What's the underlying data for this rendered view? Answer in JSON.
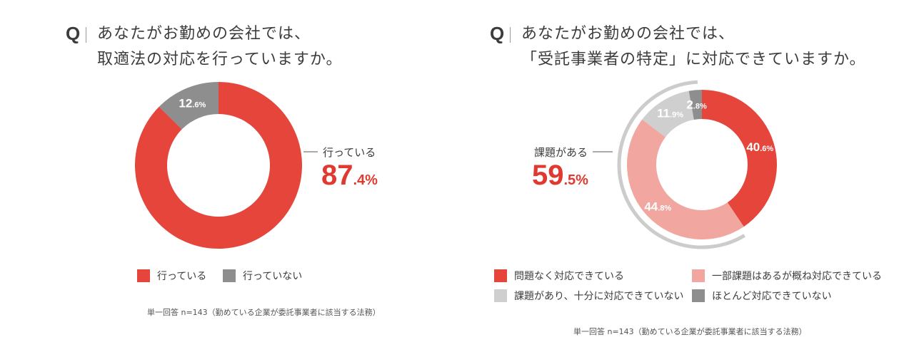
{
  "colors": {
    "red": "#e5453a",
    "pink": "#f2a6a0",
    "light_gray": "#cfcfcf",
    "dark_gray": "#8e8e8e",
    "accent_text": "#e03a30"
  },
  "left": {
    "q_mark": "Q",
    "question_line1": "あなたがお勤めの会社では、",
    "question_line2": "取適法の対応を行っていますか。",
    "callout_label": "行っている",
    "callout_int": "87",
    "callout_dec": ".4%",
    "legend": [
      {
        "label": "行っている",
        "color": "#e5453a"
      },
      {
        "label": "行っていない",
        "color": "#8e8e8e"
      }
    ],
    "note": "単一回答 n=143（勤めている企業が委託事業者に該当する法務）"
  },
  "right": {
    "q_mark": "Q",
    "question_line1": "あなたがお勤めの会社では、",
    "question_line2": "「受託事業者の特定」に対応できていますか。",
    "callout_label": "課題がある",
    "callout_int": "59",
    "callout_dec": ".5%",
    "legend": [
      {
        "label": "問題なく対応できている",
        "color": "#e5453a"
      },
      {
        "label": "一部課題はあるが概ね対応できている",
        "color": "#f2a6a0"
      },
      {
        "label": "課題があり、十分に対応できていない",
        "color": "#cfcfcf"
      },
      {
        "label": "ほとんど対応できていない",
        "color": "#8e8e8e"
      }
    ],
    "note": "単一回答 n=143（勤めている企業が委託事業者に該当する法務）"
  },
  "chart_data": [
    {
      "type": "pie",
      "donut": true,
      "categories": [
        "行っている",
        "行っていない"
      ],
      "values": [
        87.4,
        12.6
      ],
      "colors": [
        "#e5453a",
        "#8e8e8e"
      ],
      "slice_labels": [
        {
          "int": "",
          "dec": ""
        },
        {
          "int": "12",
          "dec": ".6%"
        }
      ],
      "legend_position": "bottom"
    },
    {
      "type": "pie",
      "donut": true,
      "categories": [
        "問題なく対応できている",
        "一部課題はあるが概ね対応できている",
        "課題があり、十分に対応できていない",
        "ほとんど対応できていない"
      ],
      "values": [
        40.6,
        44.8,
        11.9,
        2.8
      ],
      "colors": [
        "#e5453a",
        "#f2a6a0",
        "#cfcfcf",
        "#8e8e8e"
      ],
      "slice_labels": [
        {
          "int": "40",
          "dec": ".6%"
        },
        {
          "int": "44",
          "dec": ".8%"
        },
        {
          "int": "11",
          "dec": ".9%"
        },
        {
          "int": "2",
          "dec": ".8%"
        }
      ],
      "legend_position": "bottom"
    }
  ]
}
